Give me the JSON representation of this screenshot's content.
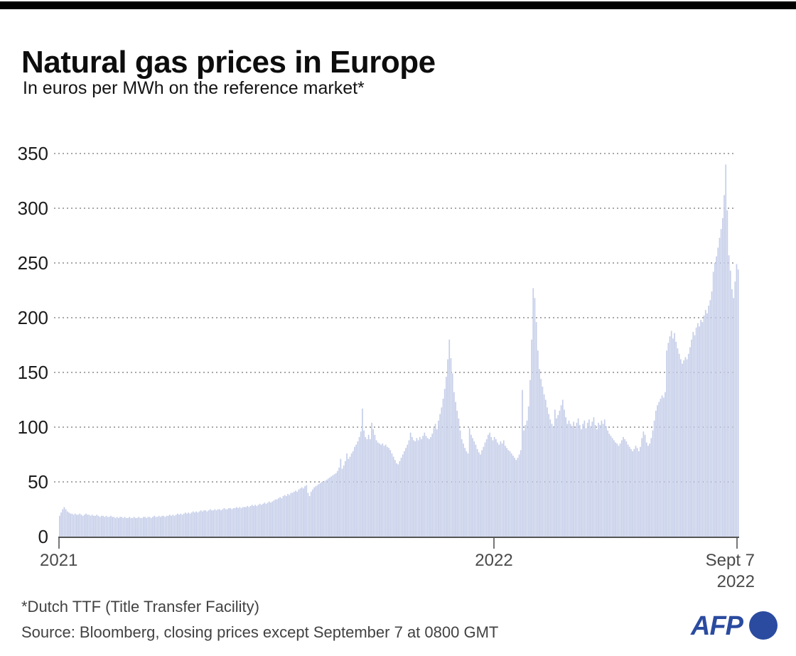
{
  "page": {
    "title": "Natural gas prices in Europe",
    "subtitle": "In euros per MWh on the reference market*"
  },
  "footer": {
    "note": "*Dutch TTF (Title Transfer Facility)",
    "source": "Source: Bloomberg, closing prices except September 7 at 0800 GMT"
  },
  "branding": {
    "agency": "AFP"
  },
  "colors": {
    "top_bar": "#000000",
    "bar_fill": "#c5cee9",
    "gridline": "#8c8c8c",
    "axis": "#555555",
    "afp_blue": "#2a4b9f"
  },
  "chart_data": {
    "type": "bar",
    "title": "Natural gas prices in Europe",
    "subtitle": "In euros per MWh on the reference market*",
    "series_name": "Dutch TTF natural gas price (euros per MWh)",
    "ylim": [
      0,
      350
    ],
    "y_ticks": [
      0,
      50,
      100,
      150,
      200,
      250,
      300,
      350
    ],
    "grid": "horizontal dotted",
    "legend": "none",
    "x_ticks": [
      {
        "label": "2021"
      },
      {
        "label": "2022"
      },
      {
        "label": "Sept 7",
        "label2": "2022"
      }
    ],
    "x_range_note": "daily prices Jan 2021 - Sept 7 2022",
    "values": [
      19,
      22,
      25,
      27,
      25,
      23,
      22,
      21,
      21,
      20,
      21,
      20,
      20,
      21,
      20,
      19,
      20,
      21,
      20,
      20,
      19,
      20,
      19,
      19,
      20,
      19,
      18,
      19,
      19,
      18,
      19,
      18,
      18,
      19,
      18,
      18,
      17,
      18,
      17,
      18,
      18,
      17,
      18,
      17,
      17,
      18,
      17,
      17,
      18,
      17,
      17,
      18,
      17,
      17,
      18,
      18,
      17,
      18,
      18,
      17,
      18,
      19,
      18,
      18,
      19,
      18,
      19,
      19,
      18,
      19,
      19,
      20,
      19,
      20,
      19,
      20,
      21,
      20,
      21,
      20,
      21,
      22,
      21,
      22,
      21,
      22,
      23,
      22,
      23,
      22,
      23,
      24,
      23,
      24,
      24,
      23,
      24,
      25,
      24,
      24,
      25,
      24,
      25,
      25,
      24,
      25,
      26,
      25,
      25,
      26,
      26,
      25,
      26,
      26,
      27,
      26,
      27,
      26,
      27,
      27,
      27,
      28,
      27,
      28,
      29,
      28,
      29,
      28,
      29,
      30,
      29,
      30,
      31,
      30,
      31,
      32,
      31,
      32,
      33,
      34,
      34,
      35,
      36,
      35,
      37,
      38,
      37,
      39,
      38,
      40,
      40,
      41,
      42,
      41,
      43,
      44,
      45,
      44,
      46,
      47,
      40,
      37,
      41,
      43,
      45,
      46,
      47,
      48,
      49,
      50,
      50,
      51,
      52,
      53,
      54,
      55,
      56,
      57,
      58,
      60,
      63,
      71,
      62,
      65,
      69,
      76,
      71,
      73,
      76,
      78,
      82,
      84,
      87,
      91,
      96,
      117,
      97,
      91,
      89,
      93,
      89,
      104,
      98,
      93,
      88,
      86,
      85,
      84,
      85,
      83,
      84,
      82,
      81,
      79,
      76,
      73,
      70,
      67,
      66,
      69,
      72,
      75,
      78,
      81,
      84,
      88,
      95,
      91,
      88,
      87,
      90,
      88,
      91,
      89,
      92,
      95,
      92,
      90,
      89,
      91,
      94,
      99,
      103,
      98,
      106,
      112,
      118,
      126,
      135,
      146,
      162,
      180,
      163,
      149,
      132,
      123,
      115,
      108,
      97,
      89,
      85,
      81,
      78,
      76,
      99,
      93,
      90,
      87,
      84,
      80,
      77,
      75,
      79,
      82,
      86,
      89,
      93,
      95,
      91,
      88,
      91,
      89,
      86,
      84,
      87,
      85,
      88,
      83,
      81,
      79,
      78,
      76,
      74,
      72,
      70,
      72,
      75,
      79,
      134,
      97,
      102,
      106,
      119,
      143,
      180,
      227,
      218,
      196,
      170,
      153,
      144,
      137,
      130,
      125,
      118,
      112,
      107,
      103,
      100,
      116,
      108,
      111,
      115,
      120,
      125,
      116,
      109,
      103,
      106,
      103,
      101,
      105,
      99,
      104,
      108,
      102,
      98,
      103,
      106,
      99,
      104,
      107,
      101,
      105,
      109,
      102,
      98,
      104,
      102,
      106,
      103,
      107,
      101,
      97,
      94,
      92,
      90,
      88,
      86,
      85,
      83,
      85,
      88,
      91,
      89,
      87,
      84,
      82,
      80,
      78,
      80,
      83,
      81,
      78,
      82,
      90,
      96,
      93,
      86,
      83,
      85,
      90,
      97,
      106,
      115,
      120,
      123,
      126,
      129,
      127,
      132,
      170,
      177,
      183,
      188,
      181,
      186,
      178,
      172,
      167,
      162,
      158,
      161,
      164,
      162,
      167,
      173,
      180,
      187,
      184,
      191,
      195,
      192,
      198,
      196,
      202,
      207,
      204,
      211,
      216,
      224,
      242,
      250,
      256,
      264,
      273,
      281,
      291,
      312,
      340,
      298,
      257,
      243,
      226,
      218,
      233,
      249,
      244
    ]
  }
}
